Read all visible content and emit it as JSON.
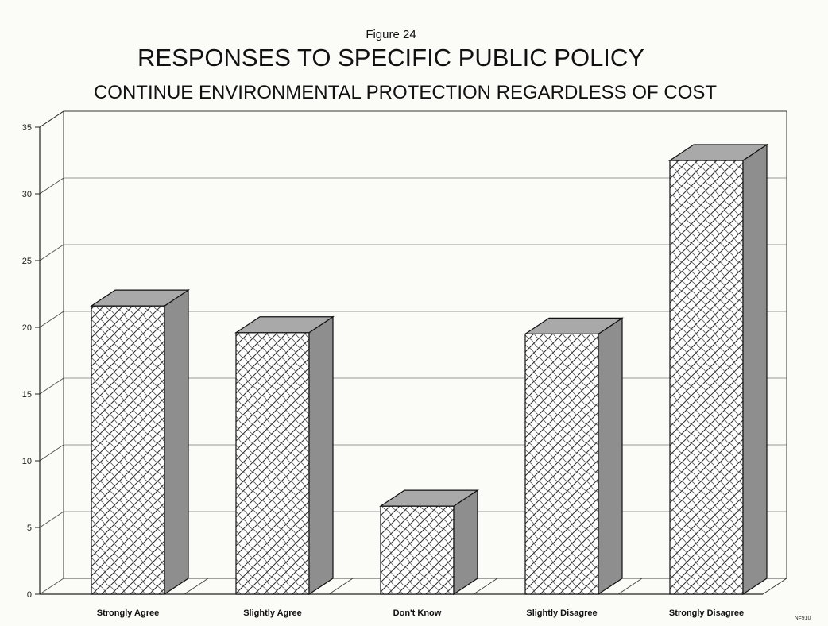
{
  "figure_label": "Figure 24",
  "chart_data": {
    "type": "bar",
    "title": "RESPONSES TO SPECIFIC PUBLIC POLICY",
    "subtitle": "CONTINUE ENVIRONMENTAL PROTECTION REGARDLESS OF COST",
    "categories": [
      "Strongly Agree",
      "Slightly Agree",
      "Don't Know",
      "Slightly Disagree",
      "Strongly Disagree"
    ],
    "values": [
      21.6,
      19.6,
      6.6,
      19.5,
      32.5
    ],
    "ylim": [
      0,
      35
    ],
    "yticks": [
      0,
      5,
      10,
      15,
      20,
      25,
      30,
      35
    ],
    "grid": true,
    "style": "3d-bars-hatched",
    "note": "N=910",
    "colors": {
      "bar_front": "#ffffff",
      "bar_hatch": "#333333",
      "bar_side": "#8e8e8e",
      "bar_top": "#a9a9a9",
      "grid": "#9a9a9a"
    }
  }
}
